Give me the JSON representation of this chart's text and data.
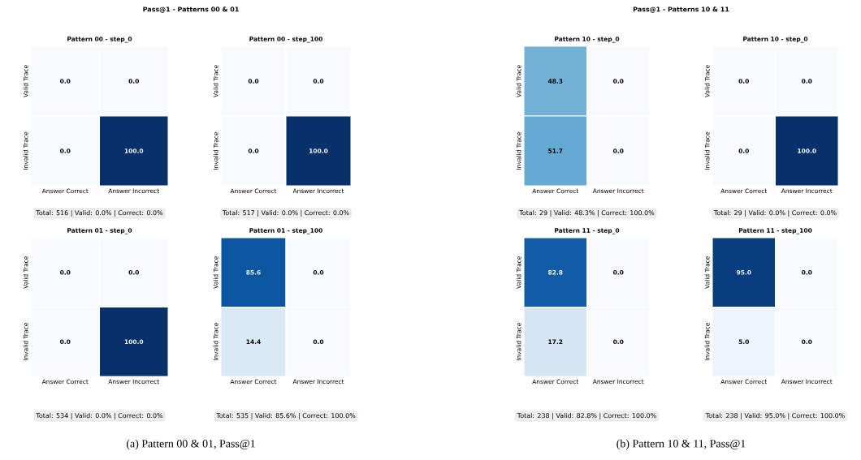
{
  "chart_data": [
    {
      "type": "heatmap",
      "title": "Pattern 00 - step_0",
      "categories": [
        "Answer Correct",
        "Answer Incorrect"
      ],
      "y_categories": [
        "Valid Trace",
        "Invalid Trace"
      ],
      "cells": [
        [
          0.0,
          0.0
        ],
        [
          0.0,
          100.0
        ]
      ],
      "cell_labels": [
        [
          "0.0",
          "0.0"
        ],
        [
          "0.0",
          "100.0"
        ]
      ],
      "annotations": [
        "Total: 516 | Valid: 0.0% | Correct: 0.0%",
        "Pass@1 - Patterns 00 & 01"
      ]
    },
    {
      "type": "heatmap",
      "title": "Pattern 00 - step_100",
      "categories": [
        "Answer Correct",
        "Answer Incorrect"
      ],
      "y_categories": [
        "Valid Trace",
        "Invalid Trace"
      ],
      "cells": [
        [
          0.0,
          0.0
        ],
        [
          0.0,
          100.0
        ]
      ],
      "cell_labels": [
        [
          "0.0",
          "0.0"
        ],
        [
          "0.0",
          "100.0"
        ]
      ],
      "annotations": [
        "Total: 517 | Valid: 0.0% | Correct: 0.0%"
      ]
    },
    {
      "type": "heatmap",
      "title": "Pattern 10 - step_0",
      "categories": [
        "Answer Correct",
        "Answer Incorrect"
      ],
      "y_categories": [
        "Valid Trace",
        "Invalid Trace"
      ],
      "cells": [
        [
          48.3,
          0.0
        ],
        [
          51.7,
          0.0
        ]
      ],
      "cell_labels": [
        [
          "48.3",
          "0.0"
        ],
        [
          "51.7",
          "0.0"
        ]
      ],
      "annotations": [
        "Total: 29 | Valid: 48.3% | Correct: 100.0%",
        "Pass@1 - Patterns 10 & 11"
      ]
    },
    {
      "type": "heatmap",
      "title": "Pattern 10 - step_0",
      "categories": [
        "Answer Correct",
        "Answer Incorrect"
      ],
      "y_categories": [
        "Valid Trace",
        "Invalid Trace"
      ],
      "cells": [
        [
          0.0,
          0.0
        ],
        [
          0.0,
          100.0
        ]
      ],
      "cell_labels": [
        [
          "0.0",
          "0.0"
        ],
        [
          "0.0",
          "100.0"
        ]
      ],
      "annotations": [
        "Total: 29 | Valid: 0.0% | Correct: 0.0%"
      ]
    },
    {
      "type": "heatmap",
      "title": "Pattern 01 - step_0",
      "categories": [
        "Answer Correct",
        "Answer Incorrect"
      ],
      "y_categories": [
        "Valid Trace",
        "Invalid Trace"
      ],
      "cells": [
        [
          0.0,
          0.0
        ],
        [
          0.0,
          100.0
        ]
      ],
      "cell_labels": [
        [
          "0.0",
          "0.0"
        ],
        [
          "0.0",
          "100.0"
        ]
      ],
      "annotations": [
        "Total: 534 | Valid: 0.0% | Correct: 0.0%",
        "(a) Pattern 00 & 01, Pass@1"
      ]
    },
    {
      "type": "heatmap",
      "title": "Pattern 01 - step_100",
      "categories": [
        "Answer Correct",
        "Answer Incorrect"
      ],
      "y_categories": [
        "Valid Trace",
        "Invalid Trace"
      ],
      "cells": [
        [
          85.6,
          0.0
        ],
        [
          14.4,
          0.0
        ]
      ],
      "cell_labels": [
        [
          "85.6",
          "0.0"
        ],
        [
          "14.4",
          "0.0"
        ]
      ],
      "annotations": [
        "Total: 535 | Valid: 85.6% | Correct: 100.0%"
      ]
    },
    {
      "type": "heatmap",
      "title": "Pattern 11 - step_0",
      "categories": [
        "Answer Correct",
        "Answer Incorrect"
      ],
      "y_categories": [
        "Valid Trace",
        "Invalid Trace"
      ],
      "cells": [
        [
          82.8,
          0.0
        ],
        [
          17.2,
          0.0
        ]
      ],
      "cell_labels": [
        [
          "82.8",
          "0.0"
        ],
        [
          "17.2",
          "0.0"
        ]
      ],
      "annotations": [
        "Total: 238 | Valid: 82.8% | Correct: 100.0%",
        "(b) Pattern 10 & 11, Pass@1"
      ]
    },
    {
      "type": "heatmap",
      "title": "Pattern 11 - step_100",
      "categories": [
        "Answer Correct",
        "Answer Incorrect"
      ],
      "y_categories": [
        "Valid Trace",
        "Invalid Trace"
      ],
      "cells": [
        [
          95.0,
          0.0
        ],
        [
          5.0,
          0.0
        ]
      ],
      "cell_labels": [
        [
          "95.0",
          "0.0"
        ],
        [
          "5.0",
          "0.0"
        ]
      ],
      "annotations": [
        "Total: 238 | Valid: 95.0% | Correct: 100.0%"
      ]
    }
  ]
}
